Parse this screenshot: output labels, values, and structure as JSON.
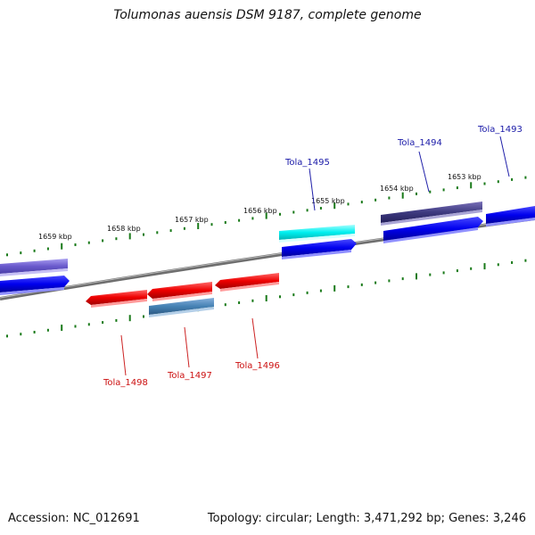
{
  "title": "Tolumonas auensis DSM 9187, complete genome",
  "accession": "Accession: NC_012691",
  "topology": "Topology: circular; Length: 3,471,292 bp; Genes: 3,246",
  "tick_labels": [
    "1659 kbp",
    "1658 kbp",
    "1657 kbp",
    "1656 kbp",
    "1655 kbp",
    "1654 kbp",
    "1653 kbp"
  ],
  "gene_labels": {
    "forward": [
      "Tola_1495",
      "Tola_1494",
      "Tola_1493"
    ],
    "reverse": [
      "Tola_1498",
      "Tola_1497",
      "Tola_1496"
    ]
  },
  "colors": {
    "forward_label": "#1a1aa8",
    "reverse_label": "#cc1111",
    "tick": "#1a7a1a",
    "backbone": "#7a7a7a"
  }
}
